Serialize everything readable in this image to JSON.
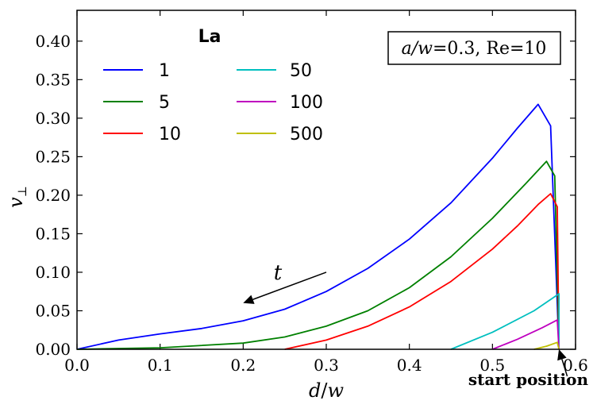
{
  "chart_data": {
    "type": "line",
    "title": "",
    "xlabel": "d/w",
    "ylabel": "v⊥",
    "xlim": [
      0.0,
      0.6
    ],
    "ylim": [
      0.0,
      0.44
    ],
    "xticks": [
      "0.0",
      "0.1",
      "0.2",
      "0.3",
      "0.4",
      "0.5",
      "0.6"
    ],
    "yticks": [
      "0.00",
      "0.05",
      "0.10",
      "0.15",
      "0.20",
      "0.25",
      "0.30",
      "0.35",
      "0.40"
    ],
    "xtick_values": [
      0.0,
      0.1,
      0.2,
      0.3,
      0.4,
      0.5,
      0.6
    ],
    "ytick_values": [
      0.0,
      0.05,
      0.1,
      0.15,
      0.2,
      0.25,
      0.3,
      0.35,
      0.4
    ],
    "legend_title": "La",
    "legend_position": "top-left",
    "series": [
      {
        "name": "1",
        "color": "#0000ff",
        "x": [
          0.0,
          0.05,
          0.1,
          0.15,
          0.2,
          0.25,
          0.3,
          0.35,
          0.4,
          0.45,
          0.5,
          0.53,
          0.555,
          0.57,
          0.58
        ],
        "y": [
          0.0,
          0.012,
          0.02,
          0.027,
          0.037,
          0.052,
          0.075,
          0.105,
          0.143,
          0.19,
          0.248,
          0.287,
          0.318,
          0.29,
          0.0
        ]
      },
      {
        "name": "5",
        "color": "#008000",
        "x": [
          0.0,
          0.1,
          0.2,
          0.25,
          0.3,
          0.35,
          0.4,
          0.45,
          0.5,
          0.54,
          0.565,
          0.575,
          0.58
        ],
        "y": [
          0.0,
          0.002,
          0.008,
          0.016,
          0.03,
          0.05,
          0.08,
          0.12,
          0.17,
          0.215,
          0.244,
          0.225,
          0.0
        ]
      },
      {
        "name": "10",
        "color": "#ff0000",
        "x": [
          0.25,
          0.3,
          0.35,
          0.4,
          0.45,
          0.5,
          0.53,
          0.555,
          0.57,
          0.578,
          0.58
        ],
        "y": [
          0.0,
          0.012,
          0.03,
          0.055,
          0.088,
          0.13,
          0.16,
          0.188,
          0.202,
          0.185,
          0.0
        ]
      },
      {
        "name": "50",
        "color": "#00bfbf",
        "x": [
          0.45,
          0.5,
          0.55,
          0.58,
          0.58
        ],
        "y": [
          0.0,
          0.022,
          0.05,
          0.072,
          0.0
        ]
      },
      {
        "name": "100",
        "color": "#bf00bf",
        "x": [
          0.5,
          0.53,
          0.56,
          0.578,
          0.58
        ],
        "y": [
          0.0,
          0.013,
          0.028,
          0.038,
          0.0
        ]
      },
      {
        "name": "500",
        "color": "#bfbf00",
        "x": [
          0.55,
          0.565,
          0.578,
          0.58
        ],
        "y": [
          0.0,
          0.004,
          0.009,
          0.0
        ]
      }
    ],
    "annotations": [
      {
        "text": "a/w=0.3, Re=10",
        "kind": "boxed-text"
      },
      {
        "text": "t",
        "kind": "arrow-label",
        "arrow_from": [
          0.3,
          0.1
        ],
        "arrow_to": [
          0.2,
          0.06
        ]
      },
      {
        "text": "start position",
        "kind": "arrow-label",
        "arrow_from": [
          0.59,
          -0.035
        ],
        "arrow_to": [
          0.58,
          0.0
        ]
      }
    ]
  },
  "box_label": {
    "prefix": "a/w",
    "suffix": "=0.3, Re=10"
  },
  "t_label": "t",
  "start_label": "start position",
  "axis": {
    "x_var": "d",
    "x_den": "w",
    "y_var": "v",
    "y_sub": "⊥"
  }
}
